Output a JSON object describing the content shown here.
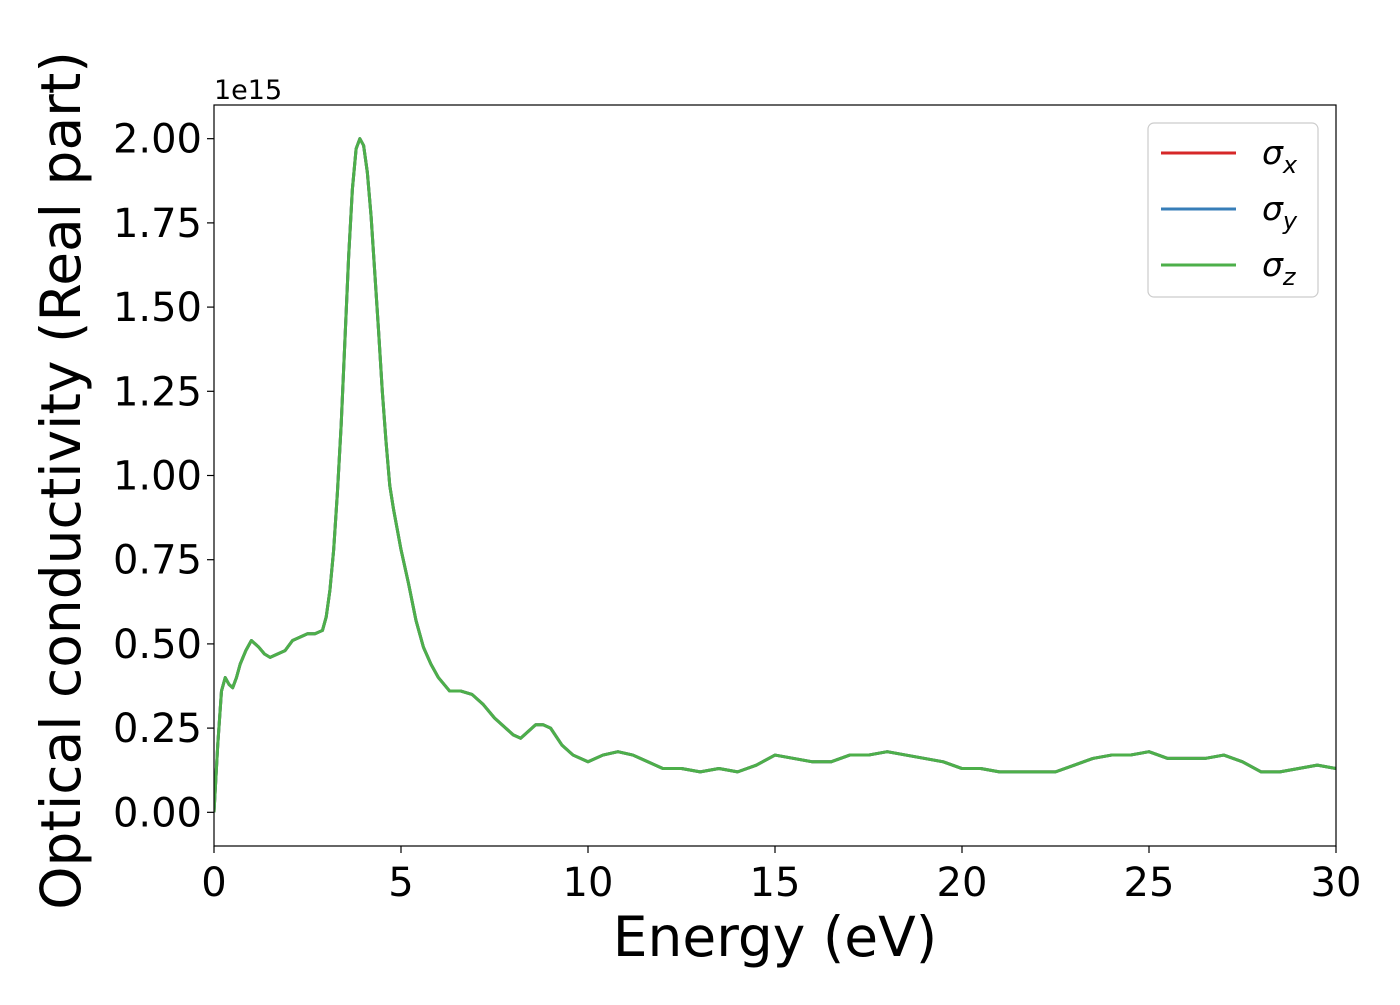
{
  "chart_data": {
    "type": "line",
    "xlabel": "Energy (eV)",
    "ylabel": "Optical conductivity (Real part)",
    "y_offset_label": "1e15",
    "xlim": [
      0,
      30
    ],
    "ylim": [
      -0.1,
      2.1
    ],
    "y_scale": 1000000000000000.0,
    "x_ticks": [
      0,
      5,
      10,
      15,
      20,
      25,
      30
    ],
    "x_tick_labels": [
      "0",
      "5",
      "10",
      "15",
      "20",
      "25",
      "30"
    ],
    "y_ticks": [
      0.0,
      0.25,
      0.5,
      0.75,
      1.0,
      1.25,
      1.5,
      1.75,
      2.0
    ],
    "y_tick_labels": [
      "0.00",
      "0.25",
      "0.50",
      "0.75",
      "1.00",
      "1.25",
      "1.50",
      "1.75",
      "2.00"
    ],
    "grid": false,
    "legend_position": "top-right",
    "x": [
      0.0,
      0.1,
      0.2,
      0.3,
      0.4,
      0.5,
      0.6,
      0.7,
      0.85,
      1.0,
      1.1,
      1.2,
      1.35,
      1.5,
      1.7,
      1.9,
      2.1,
      2.3,
      2.5,
      2.7,
      2.9,
      3.0,
      3.1,
      3.2,
      3.3,
      3.4,
      3.5,
      3.6,
      3.7,
      3.8,
      3.9,
      4.0,
      4.1,
      4.2,
      4.3,
      4.4,
      4.5,
      4.6,
      4.7,
      4.8,
      4.9,
      5.0,
      5.2,
      5.4,
      5.6,
      5.8,
      6.0,
      6.3,
      6.6,
      6.9,
      7.2,
      7.5,
      7.8,
      8.0,
      8.2,
      8.4,
      8.6,
      8.8,
      9.0,
      9.3,
      9.6,
      10.0,
      10.4,
      10.8,
      11.2,
      11.6,
      12.0,
      12.5,
      13.0,
      13.5,
      14.0,
      14.5,
      15.0,
      15.5,
      16.0,
      16.5,
      17.0,
      17.5,
      18.0,
      18.5,
      19.0,
      19.5,
      20.0,
      20.5,
      21.0,
      21.5,
      22.0,
      22.5,
      23.0,
      23.5,
      24.0,
      24.5,
      25.0,
      25.5,
      26.0,
      26.5,
      27.0,
      27.5,
      28.0,
      28.5,
      29.0,
      29.5,
      30.0
    ],
    "series": [
      {
        "name": "σx",
        "color": "#d62728",
        "values": [
          0.0,
          0.2,
          0.36,
          0.4,
          0.38,
          0.37,
          0.4,
          0.44,
          0.48,
          0.51,
          0.5,
          0.49,
          0.47,
          0.46,
          0.47,
          0.48,
          0.51,
          0.52,
          0.53,
          0.53,
          0.54,
          0.58,
          0.66,
          0.78,
          0.95,
          1.15,
          1.4,
          1.65,
          1.85,
          1.97,
          2.0,
          1.98,
          1.9,
          1.77,
          1.6,
          1.43,
          1.25,
          1.1,
          0.97,
          0.9,
          0.84,
          0.78,
          0.68,
          0.57,
          0.49,
          0.44,
          0.4,
          0.36,
          0.36,
          0.35,
          0.32,
          0.28,
          0.25,
          0.23,
          0.22,
          0.24,
          0.26,
          0.26,
          0.25,
          0.2,
          0.17,
          0.15,
          0.17,
          0.18,
          0.17,
          0.15,
          0.13,
          0.13,
          0.12,
          0.13,
          0.12,
          0.14,
          0.17,
          0.16,
          0.15,
          0.15,
          0.17,
          0.17,
          0.18,
          0.17,
          0.16,
          0.15,
          0.13,
          0.13,
          0.12,
          0.12,
          0.12,
          0.12,
          0.14,
          0.16,
          0.17,
          0.17,
          0.18,
          0.16,
          0.16,
          0.16,
          0.17,
          0.15,
          0.12,
          0.12,
          0.13,
          0.14,
          0.13
        ]
      },
      {
        "name": "σy",
        "color": "#377eb8",
        "values": [
          0.0,
          0.2,
          0.36,
          0.4,
          0.38,
          0.37,
          0.4,
          0.44,
          0.48,
          0.51,
          0.5,
          0.49,
          0.47,
          0.46,
          0.47,
          0.48,
          0.51,
          0.52,
          0.53,
          0.53,
          0.54,
          0.58,
          0.66,
          0.78,
          0.95,
          1.15,
          1.4,
          1.65,
          1.85,
          1.97,
          2.0,
          1.98,
          1.9,
          1.77,
          1.6,
          1.43,
          1.25,
          1.1,
          0.97,
          0.9,
          0.84,
          0.78,
          0.68,
          0.57,
          0.49,
          0.44,
          0.4,
          0.36,
          0.36,
          0.35,
          0.32,
          0.28,
          0.25,
          0.23,
          0.22,
          0.24,
          0.26,
          0.26,
          0.25,
          0.2,
          0.17,
          0.15,
          0.17,
          0.18,
          0.17,
          0.15,
          0.13,
          0.13,
          0.12,
          0.13,
          0.12,
          0.14,
          0.17,
          0.16,
          0.15,
          0.15,
          0.17,
          0.17,
          0.18,
          0.17,
          0.16,
          0.15,
          0.13,
          0.13,
          0.12,
          0.12,
          0.12,
          0.12,
          0.14,
          0.16,
          0.17,
          0.17,
          0.18,
          0.16,
          0.16,
          0.16,
          0.17,
          0.15,
          0.12,
          0.12,
          0.13,
          0.14,
          0.13
        ]
      },
      {
        "name": "σz",
        "color": "#4daf4a",
        "values": [
          0.0,
          0.2,
          0.36,
          0.4,
          0.38,
          0.37,
          0.4,
          0.44,
          0.48,
          0.51,
          0.5,
          0.49,
          0.47,
          0.46,
          0.47,
          0.48,
          0.51,
          0.52,
          0.53,
          0.53,
          0.54,
          0.58,
          0.66,
          0.78,
          0.95,
          1.15,
          1.4,
          1.65,
          1.85,
          1.97,
          2.0,
          1.98,
          1.9,
          1.77,
          1.6,
          1.43,
          1.25,
          1.1,
          0.97,
          0.9,
          0.84,
          0.78,
          0.68,
          0.57,
          0.49,
          0.44,
          0.4,
          0.36,
          0.36,
          0.35,
          0.32,
          0.28,
          0.25,
          0.23,
          0.22,
          0.24,
          0.26,
          0.26,
          0.25,
          0.2,
          0.17,
          0.15,
          0.17,
          0.18,
          0.17,
          0.15,
          0.13,
          0.13,
          0.12,
          0.13,
          0.12,
          0.14,
          0.17,
          0.16,
          0.15,
          0.15,
          0.17,
          0.17,
          0.18,
          0.17,
          0.16,
          0.15,
          0.13,
          0.13,
          0.12,
          0.12,
          0.12,
          0.12,
          0.14,
          0.16,
          0.17,
          0.17,
          0.18,
          0.16,
          0.16,
          0.16,
          0.17,
          0.15,
          0.12,
          0.12,
          0.13,
          0.14,
          0.13
        ]
      }
    ],
    "legend": [
      {
        "symbol": "σ",
        "sub": "x",
        "color": "#d62728"
      },
      {
        "symbol": "σ",
        "sub": "y",
        "color": "#377eb8"
      },
      {
        "symbol": "σ",
        "sub": "z",
        "color": "#4daf4a"
      }
    ]
  }
}
